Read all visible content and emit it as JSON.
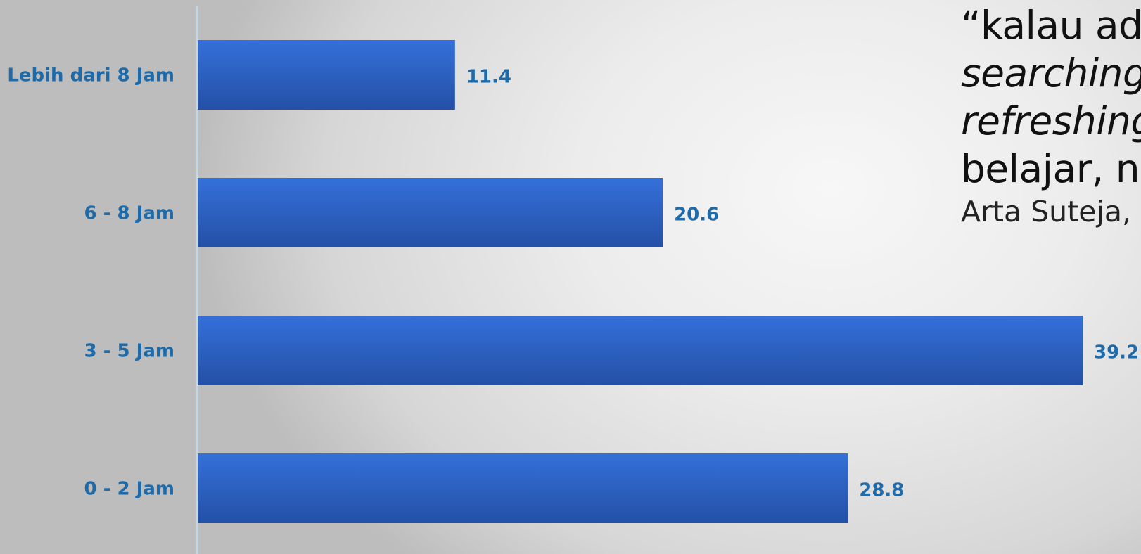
{
  "chart_data": {
    "type": "bar",
    "orientation": "horizontal",
    "categories": [
      "Lebih dari 8 Jam",
      "6 - 8 Jam",
      "3 - 5 Jam",
      "0 - 2 Jam"
    ],
    "values": [
      11.4,
      20.6,
      39.2,
      28.8
    ],
    "value_labels": [
      "11.4",
      "20.6",
      "39.2",
      "28.8"
    ],
    "title": "",
    "xlabel": "",
    "ylabel": "",
    "xlim": [
      0,
      40
    ],
    "grid": false,
    "legend": "none",
    "bar_color": "#2b5fc7",
    "label_color": "#1f6aa8"
  },
  "quote": {
    "line1": "“kalau ada",
    "line2": "searching,",
    "line3": "refreshing",
    "line4": "belajar, n",
    "source": "Arta Suteja,"
  }
}
